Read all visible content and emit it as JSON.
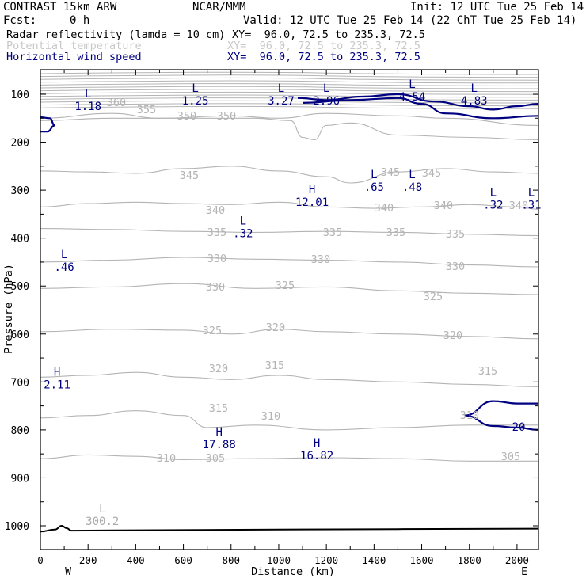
{
  "header": {
    "model": "CONTRAST 15km ARW",
    "institution": "NCAR/MMM",
    "init": "Init: 12 UTC Tue 25 Feb 14",
    "fcst_label": "Fcst:",
    "fcst_value": "0 h",
    "valid": "Valid: 12 UTC Tue 25 Feb 14 (22 ChT Tue 25 Feb 14)"
  },
  "legend": [
    {
      "name": "Radar reflectivity (lamda = 10 cm)",
      "xy": "XY=  96.0, 72.5 to 235.3, 72.5",
      "color": "#000000"
    },
    {
      "name": "Potential temperature",
      "xy": "XY=  96.0, 72.5 to 235.3, 72.5",
      "color": "#c8c8c8"
    },
    {
      "name": "Horizontal wind speed",
      "xy": "XY=  96.0, 72.5 to 235.3, 72.5",
      "color": "#000080"
    }
  ],
  "chart_data": {
    "type": "cross-section contour",
    "xlabel": "Distance (km)",
    "ylabel": "Pressure (hPa)",
    "xlim": [
      0,
      2090
    ],
    "ylim": [
      1050,
      55
    ],
    "x_ticks": [
      "0",
      "200",
      "400",
      "600",
      "800",
      "1000",
      "1200",
      "1400",
      "1600",
      "1800",
      "2000"
    ],
    "y_ticks": [
      "100",
      "200",
      "300",
      "400",
      "500",
      "600",
      "700",
      "800",
      "900",
      "1000"
    ],
    "x_end_labels": {
      "left": "W",
      "right": "E"
    },
    "theta_contours": [
      {
        "value": 355,
        "points": [
          [
            0,
            150
          ],
          [
            300,
            140
          ],
          [
            500,
            150
          ],
          [
            800,
            145
          ],
          [
            1000,
            150
          ],
          [
            1200,
            140
          ],
          [
            1500,
            145
          ],
          [
            1700,
            150
          ],
          [
            2090,
            165
          ]
        ]
      },
      {
        "value": 350,
        "points": [
          [
            0,
            155
          ],
          [
            300,
            150
          ],
          [
            600,
            150
          ],
          [
            900,
            150
          ],
          [
            1050,
            155
          ],
          [
            1100,
            190
          ],
          [
            1150,
            195
          ],
          [
            1200,
            165
          ],
          [
            1300,
            160
          ],
          [
            1500,
            185
          ],
          [
            1800,
            190
          ],
          [
            2090,
            195
          ]
        ]
      },
      {
        "value": 345,
        "points": [
          [
            0,
            260
          ],
          [
            200,
            262
          ],
          [
            400,
            265
          ],
          [
            600,
            255
          ],
          [
            800,
            250
          ],
          [
            1000,
            260
          ],
          [
            1200,
            272
          ],
          [
            1300,
            285
          ],
          [
            1500,
            262
          ],
          [
            1700,
            255
          ],
          [
            1900,
            262
          ],
          [
            2090,
            265
          ]
        ]
      },
      {
        "value": 340,
        "points": [
          [
            0,
            335
          ],
          [
            200,
            328
          ],
          [
            400,
            325
          ],
          [
            600,
            328
          ],
          [
            800,
            330
          ],
          [
            1000,
            325
          ],
          [
            1200,
            335
          ],
          [
            1400,
            338
          ],
          [
            1600,
            335
          ],
          [
            1800,
            330
          ],
          [
            2000,
            335
          ],
          [
            2090,
            340
          ]
        ]
      },
      {
        "value": 335,
        "points": [
          [
            0,
            380
          ],
          [
            300,
            382
          ],
          [
            600,
            386
          ],
          [
            900,
            388
          ],
          [
            1200,
            386
          ],
          [
            1500,
            388
          ],
          [
            1800,
            392
          ],
          [
            2090,
            395
          ]
        ]
      },
      {
        "value": 330,
        "points": [
          [
            0,
            450
          ],
          [
            300,
            446
          ],
          [
            600,
            440
          ],
          [
            900,
            444
          ],
          [
            1200,
            446
          ],
          [
            1500,
            450
          ],
          [
            1800,
            456
          ],
          [
            2090,
            460
          ]
        ]
      },
      {
        "value": 325,
        "points": [
          [
            0,
            505
          ],
          [
            300,
            502
          ],
          [
            600,
            495
          ],
          [
            900,
            505
          ],
          [
            1200,
            502
          ],
          [
            1500,
            510
          ],
          [
            1800,
            515
          ],
          [
            2090,
            518
          ]
        ]
      },
      {
        "value": 320,
        "points": [
          [
            0,
            595
          ],
          [
            300,
            590
          ],
          [
            600,
            592
          ],
          [
            800,
            600
          ],
          [
            1000,
            590
          ],
          [
            1200,
            595
          ],
          [
            1500,
            600
          ],
          [
            1800,
            605
          ],
          [
            2090,
            610
          ]
        ]
      },
      {
        "value": 315,
        "points": [
          [
            0,
            690
          ],
          [
            200,
            686
          ],
          [
            400,
            680
          ],
          [
            600,
            690
          ],
          [
            800,
            695
          ],
          [
            1000,
            686
          ],
          [
            1200,
            695
          ],
          [
            1500,
            700
          ],
          [
            1800,
            705
          ],
          [
            2090,
            710
          ]
        ]
      },
      {
        "value": 310,
        "points": [
          [
            0,
            775
          ],
          [
            200,
            770
          ],
          [
            400,
            760
          ],
          [
            600,
            770
          ],
          [
            700,
            795
          ],
          [
            900,
            790
          ],
          [
            1200,
            800
          ],
          [
            1500,
            795
          ],
          [
            1800,
            790
          ],
          [
            2090,
            790
          ]
        ]
      },
      {
        "value": 305,
        "points": [
          [
            0,
            860
          ],
          [
            200,
            852
          ],
          [
            400,
            855
          ],
          [
            600,
            862
          ],
          [
            900,
            860
          ],
          [
            1200,
            858
          ],
          [
            1500,
            860
          ],
          [
            1800,
            865
          ],
          [
            2090,
            865
          ]
        ]
      }
    ],
    "theta_label_values": [
      "360",
      "355",
      "350",
      "350",
      "345",
      "345",
      "345",
      "340",
      "340",
      "340",
      "340",
      "335",
      "335",
      "335",
      "335",
      "330",
      "330",
      "330",
      "330",
      "325",
      "325",
      "325",
      "320",
      "320",
      "320",
      "315",
      "315",
      "315",
      "310",
      "310",
      "310",
      "305",
      "305",
      "305"
    ],
    "wind_contours": [
      {
        "value": 20,
        "label": "20",
        "points": [
          [
            1780,
            770
          ],
          [
            1900,
            740
          ],
          [
            2000,
            745
          ],
          [
            2090,
            745
          ]
        ]
      },
      {
        "value": 20,
        "label": "",
        "points": [
          [
            1780,
            770
          ],
          [
            1900,
            792
          ],
          [
            2000,
            795
          ],
          [
            2090,
            800
          ]
        ]
      },
      {
        "value": 0,
        "label": "",
        "points": [
          [
            0,
            148
          ],
          [
            40,
            150
          ],
          [
            60,
            165
          ],
          [
            30,
            178
          ],
          [
            0,
            178
          ]
        ]
      },
      {
        "value": 0,
        "label": "",
        "points": [
          [
            1080,
            108
          ],
          [
            1200,
            112
          ],
          [
            1350,
            105
          ],
          [
            1500,
            100
          ],
          [
            1650,
            115
          ],
          [
            1800,
            125
          ],
          [
            1900,
            132
          ],
          [
            2000,
            125
          ],
          [
            2090,
            120
          ]
        ]
      },
      {
        "value": 0,
        "label": "",
        "points": [
          [
            1100,
            118
          ],
          [
            1300,
            112
          ],
          [
            1500,
            108
          ],
          [
            1600,
            120
          ],
          [
            1700,
            140
          ],
          [
            1900,
            150
          ],
          [
            2090,
            145
          ]
        ]
      }
    ],
    "highs_lows": [
      {
        "type": "L",
        "value": "1.18",
        "x": 200,
        "p": 120,
        "color": "#000080"
      },
      {
        "type": "L",
        "value": "1.25",
        "x": 650,
        "p": 108,
        "color": "#000080"
      },
      {
        "type": "L",
        "value": "3.27",
        "x": 1010,
        "p": 108,
        "color": "#000080"
      },
      {
        "type": "L",
        "value": "2.96",
        "x": 1200,
        "p": 108,
        "color": "#000080"
      },
      {
        "type": "L",
        "value": "4.54",
        "x": 1560,
        "p": 100,
        "color": "#000080"
      },
      {
        "type": "L",
        "value": "4.83",
        "x": 1820,
        "p": 108,
        "color": "#000080"
      },
      {
        "type": "L",
        "value": ".65",
        "x": 1400,
        "p": 288,
        "color": "#000080"
      },
      {
        "type": "L",
        "value": ".48",
        "x": 1560,
        "p": 288,
        "color": "#000080"
      },
      {
        "type": "H",
        "value": "12.01",
        "x": 1140,
        "p": 320,
        "color": "#000080"
      },
      {
        "type": "L",
        "value": ".32",
        "x": 1900,
        "p": 325,
        "color": "#000080"
      },
      {
        "type": "L",
        "value": ".31",
        "x": 2060,
        "p": 325,
        "color": "#000080"
      },
      {
        "type": "L",
        "value": ".32",
        "x": 850,
        "p": 385,
        "color": "#000080"
      },
      {
        "type": "L",
        "value": ".46",
        "x": 100,
        "p": 455,
        "color": "#000080"
      },
      {
        "type": "H",
        "value": "2.11",
        "x": 70,
        "p": 700,
        "color": "#000080"
      },
      {
        "type": "H",
        "value": "17.88",
        "x": 750,
        "p": 825,
        "color": "#000080"
      },
      {
        "type": "H",
        "value": "16.82",
        "x": 1160,
        "p": 848,
        "color": "#000080"
      },
      {
        "type": "L",
        "value": "300.2",
        "x": 260,
        "p": 985,
        "color": "#aaaaaa"
      }
    ],
    "reflectivity_contours": [
      {
        "points": [
          [
            0,
            1012
          ],
          [
            60,
            1008
          ],
          [
            90,
            1000
          ],
          [
            110,
            1005
          ],
          [
            130,
            1010
          ],
          [
            500,
            1009
          ],
          [
            1000,
            1008
          ],
          [
            1500,
            1007
          ],
          [
            2090,
            1006
          ]
        ]
      }
    ]
  }
}
